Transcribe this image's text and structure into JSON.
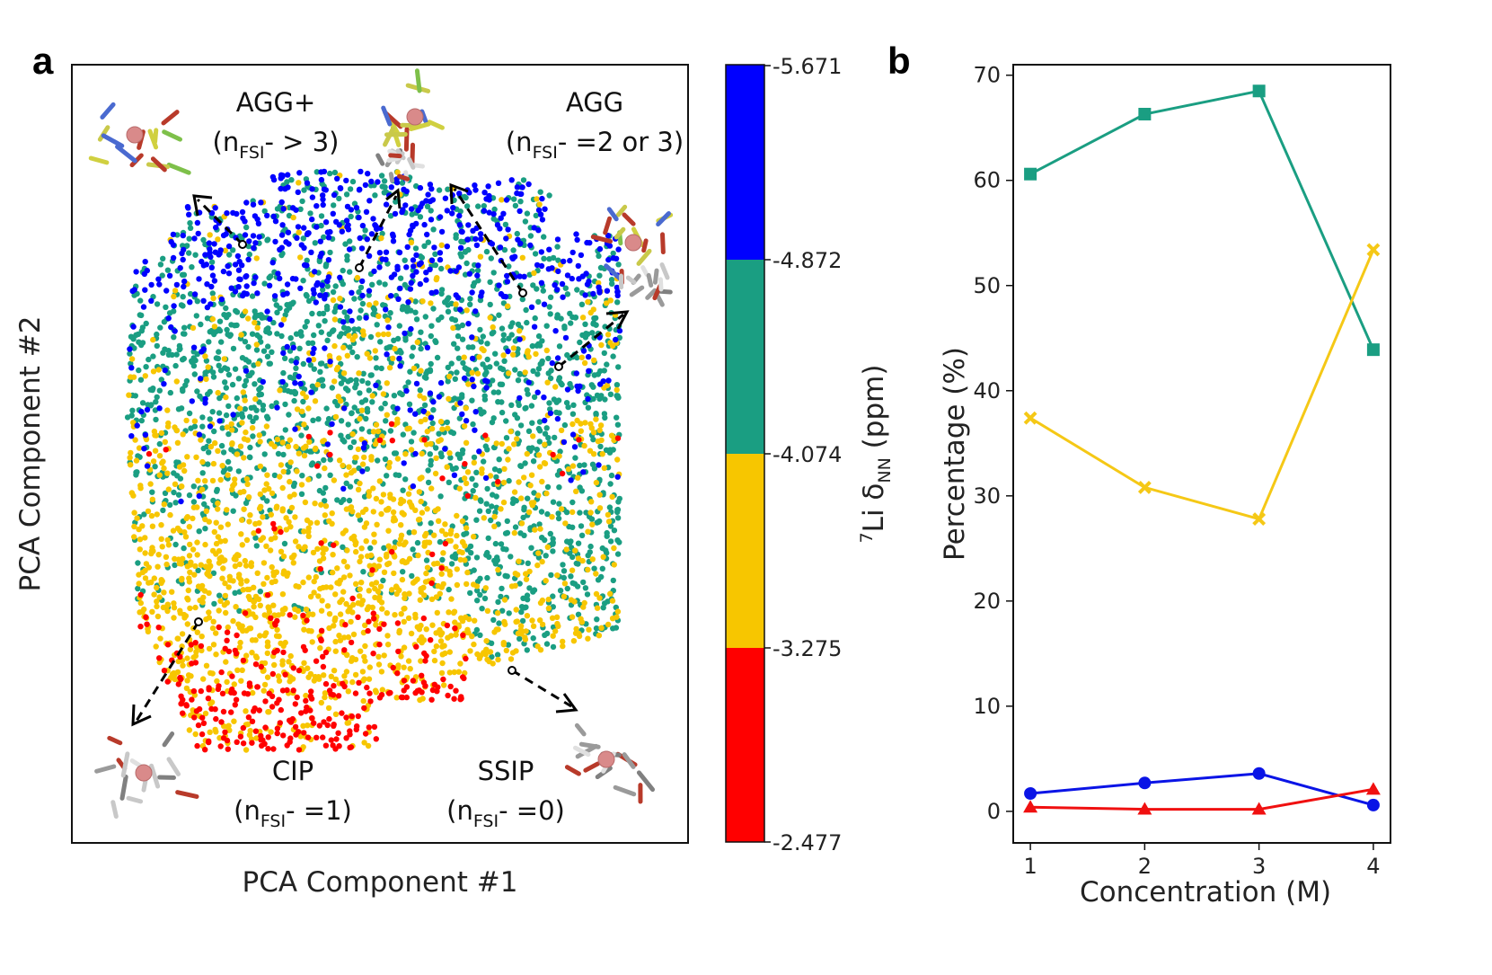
{
  "panel_a": {
    "label": "a",
    "xlabel": "PCA Component #1",
    "ylabel": "PCA Component #2",
    "regions": [
      {
        "id": "agg-plus",
        "name": "AGG+",
        "prefix": "(n",
        "sub": "FSI",
        "sup": "-",
        "suffix": " > 3)"
      },
      {
        "id": "agg",
        "name": "AGG",
        "prefix": "(n",
        "sub": "FSI",
        "sup": "-",
        "suffix": " =2 or 3)"
      },
      {
        "id": "cip",
        "name": "CIP",
        "prefix": "(n",
        "sub": "FSI",
        "sup": "-",
        "suffix": " =1)"
      },
      {
        "id": "ssip",
        "name": "SSIP",
        "prefix": "(n",
        "sub": "FSI",
        "sup": "-",
        "suffix": " =0)"
      }
    ],
    "colorbar": {
      "label_sup": "7",
      "label_main": "Li δ",
      "label_sub": "NN",
      "label_unit": " (ppm)",
      "ticks": [
        "-5.671",
        "-4.872",
        "-4.074",
        "-3.275",
        "-2.477"
      ],
      "colors": [
        "#0000ff",
        "#1a9e82",
        "#f7c600",
        "#ff0000"
      ]
    }
  },
  "chart_data": {
    "type": "line",
    "panel": "b",
    "xlabel": "Concentration (M)",
    "ylabel": "Percentage (%)",
    "x": [
      1,
      2,
      3,
      4
    ],
    "xlim": [
      0.85,
      4.15
    ],
    "ylim": [
      -3,
      71
    ],
    "xticks": [
      "1",
      "2",
      "3",
      "4"
    ],
    "yticks": [
      "0",
      "10",
      "20",
      "30",
      "40",
      "50",
      "60",
      "70"
    ],
    "grid": false,
    "series": [
      {
        "values": [
          60.6,
          66.3,
          68.5,
          43.9
        ],
        "color": "#1a9e82",
        "marker": "square"
      },
      {
        "values": [
          37.4,
          30.8,
          27.8,
          53.4
        ],
        "color": "#f5c816",
        "marker": "x"
      },
      {
        "values": [
          1.7,
          2.7,
          3.6,
          0.6
        ],
        "color": "#0a14e6",
        "marker": "circle"
      },
      {
        "values": [
          0.4,
          0.2,
          0.2,
          2.1
        ],
        "color": "#f01010",
        "marker": "triangle"
      }
    ]
  },
  "panel_b": {
    "label": "b"
  }
}
